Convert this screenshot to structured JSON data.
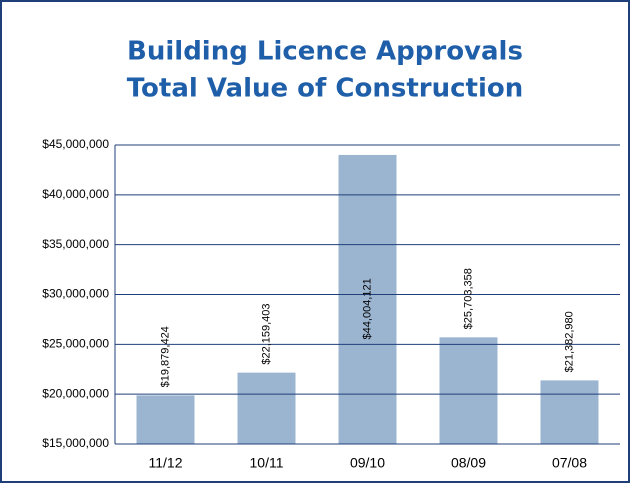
{
  "chart_data": {
    "type": "bar",
    "title": "Building Licence Approvals",
    "subtitle": "Total Value of Construction",
    "categories": [
      "11/12",
      "10/11",
      "09/10",
      "08/09",
      "07/08"
    ],
    "values": [
      19879424,
      22159403,
      44004121,
      25703358,
      21382980
    ],
    "value_labels": [
      "$19,879,424",
      "$22,159,403",
      "$44,004,121",
      "$25,703,358",
      "$21,382,980"
    ],
    "color": "#9bb5d1",
    "ylim": [
      15000000,
      45000000
    ],
    "yticks": [
      {
        "value": 15000000,
        "label": "$15,000,000"
      },
      {
        "value": 20000000,
        "label": "$20,000,000"
      },
      {
        "value": 25000000,
        "label": "$25,000,000"
      },
      {
        "value": 30000000,
        "label": "$30,000,000"
      },
      {
        "value": 35000000,
        "label": "$35,000,000"
      },
      {
        "value": 40000000,
        "label": "$40,000,000"
      },
      {
        "value": 45000000,
        "label": "$45,000,000"
      }
    ],
    "grid": true
  }
}
